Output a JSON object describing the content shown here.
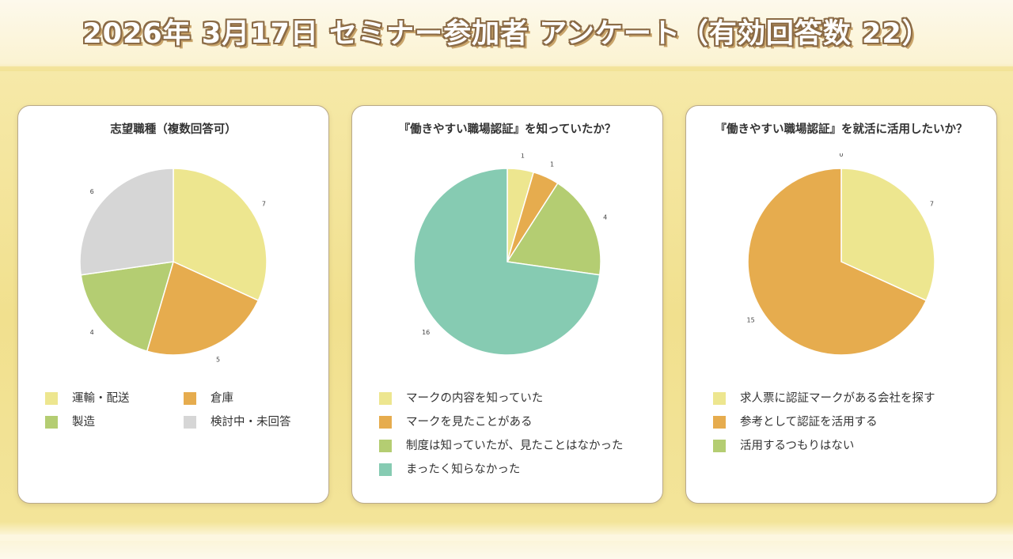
{
  "page": {
    "title": "2026年 3月17日 セミナー参加者 アンケート（有効回答数 22）"
  },
  "chart_data": [
    {
      "type": "pie",
      "title": "志望職種（複数回答可）",
      "categories": [
        "運輸・配送",
        "倉庫",
        "製造",
        "検討中・未回答"
      ],
      "values": [
        7,
        5,
        4,
        6
      ],
      "colors": [
        "#ede68f",
        "#e6ac4e",
        "#b4cd72",
        "#d6d6d6"
      ],
      "legend_columns": 2,
      "legend_placement": "bottom"
    },
    {
      "type": "pie",
      "title": "『働きやすい職場認証』を知っていたか？",
      "categories": [
        "マークの内容を知っていた",
        "マークを見たことがある",
        "制度は知っていたが、見たことはなかった",
        "まったく知らなかった"
      ],
      "values": [
        1,
        1,
        4,
        16
      ],
      "colors": [
        "#ede68f",
        "#e6ac4e",
        "#b4cd72",
        "#86cbb2"
      ],
      "legend_columns": 1,
      "legend_placement": "bottom"
    },
    {
      "type": "pie",
      "title": "『働きやすい職場認証』を就活に活用したいか？",
      "categories": [
        "求人票に認証マークがある会社を探す",
        "参考として認証を活用する",
        "活用するつもりはない"
      ],
      "values": [
        7,
        15,
        0
      ],
      "colors": [
        "#ede68f",
        "#e6ac4e",
        "#b4cd72"
      ],
      "legend_columns": 1,
      "legend_placement": "bottom"
    }
  ]
}
